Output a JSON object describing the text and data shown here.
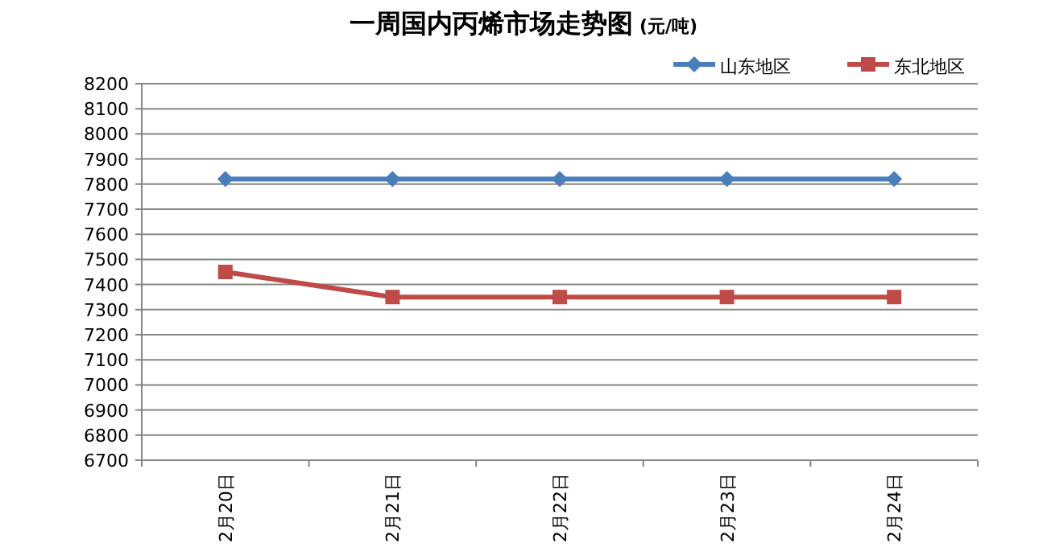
{
  "chart_data": {
    "type": "line",
    "title": "一周国内丙烯市场走势图",
    "subtitle": "(元/吨)",
    "categories": [
      "2月20日",
      "2月21日",
      "2月22日",
      "2月23日",
      "2月24日"
    ],
    "series": [
      {
        "name": "山东地区",
        "color": "#4a7ebb",
        "marker": "diamond",
        "values": [
          7820,
          7820,
          7820,
          7820,
          7820
        ]
      },
      {
        "name": "东北地区",
        "color": "#be4b48",
        "marker": "square",
        "values": [
          7450,
          7350,
          7350,
          7350,
          7350
        ]
      }
    ],
    "ylim": [
      6700,
      8200
    ],
    "yticks": [
      6700,
      6800,
      6900,
      7000,
      7100,
      7200,
      7300,
      7400,
      7500,
      7600,
      7700,
      7800,
      7900,
      8000,
      8100,
      8200
    ],
    "grid": "y",
    "legend": "top right",
    "line_style": "solid"
  }
}
